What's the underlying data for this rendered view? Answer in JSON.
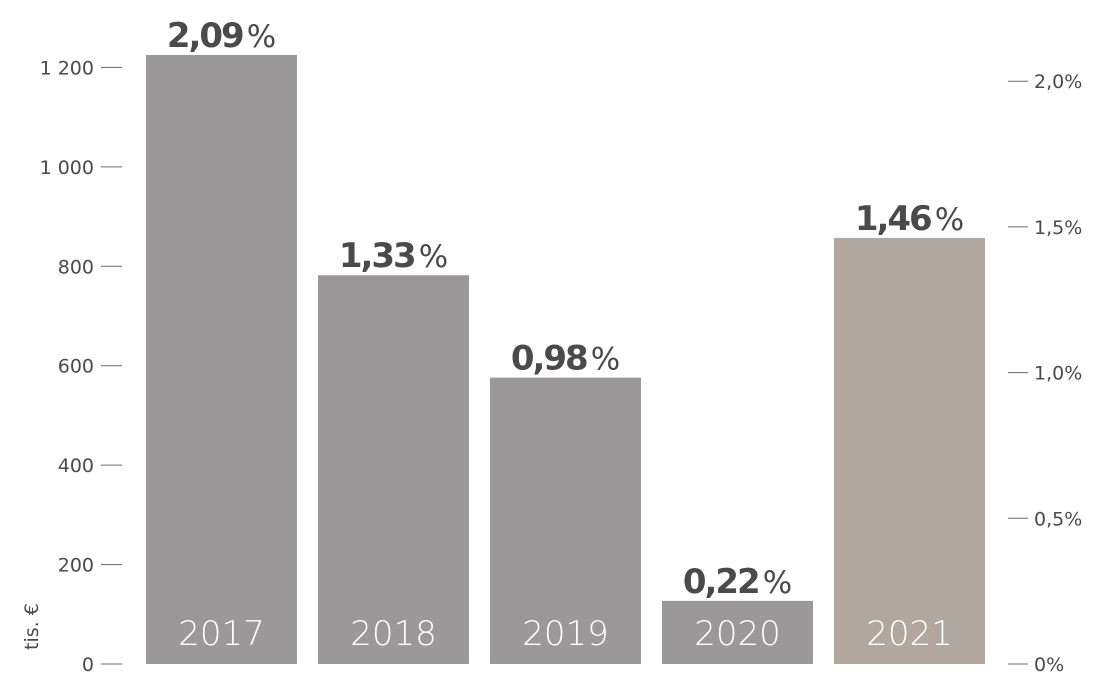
{
  "chart_data": {
    "type": "bar",
    "categories": [
      "2017",
      "2018",
      "2019",
      "2020",
      "2021"
    ],
    "values": [
      1225,
      782,
      576,
      127,
      857
    ],
    "secondary_values_percent": [
      2.09,
      1.33,
      0.98,
      0.22,
      1.46
    ],
    "value_labels": [
      {
        "number": "2,09",
        "sign": "%"
      },
      {
        "number": "1,33",
        "sign": "%"
      },
      {
        "number": "0,98",
        "sign": "%"
      },
      {
        "number": "0,22",
        "sign": "%"
      },
      {
        "number": "1,46",
        "sign": "%"
      }
    ],
    "ylabel": "tis. €",
    "ylim": [
      0,
      1225
    ],
    "y_ticks": [
      "0",
      "200",
      "400",
      "600",
      "800",
      "1 000",
      "1 200"
    ],
    "y_tick_values": [
      0,
      200,
      400,
      600,
      800,
      1000,
      1200
    ],
    "y2_ticks": [
      "0%",
      "0,5%",
      "1,0%",
      "1,5%",
      "2,0%"
    ],
    "y2_tick_values": [
      0,
      0.5,
      1.0,
      1.5,
      2.0
    ],
    "y2lim": [
      0,
      2.09
    ],
    "grid": false,
    "colors": {
      "bar_default": "#9a9898",
      "bar_highlight": "#b2a79e",
      "text": "#4a4a4a",
      "bar_label": "#ffffff"
    },
    "highlight_index": 4
  }
}
